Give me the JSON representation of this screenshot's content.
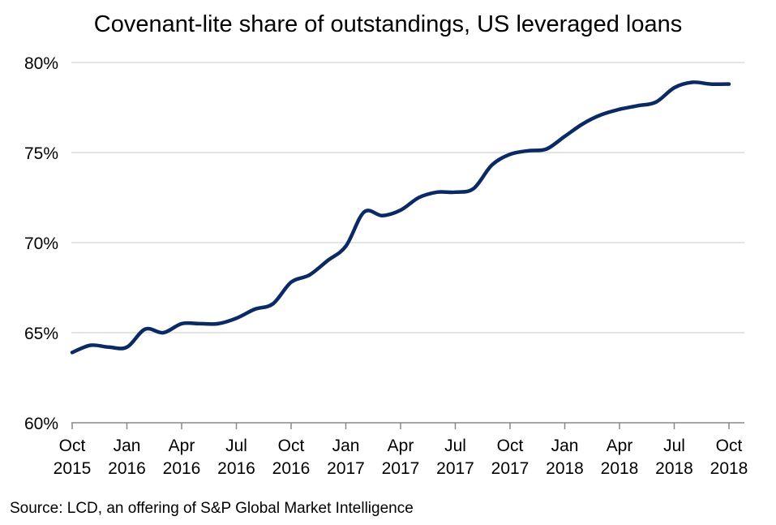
{
  "chart_data": {
    "type": "line",
    "title": "Covenant-lite share of outstandings, US leveraged loans",
    "xlabel": "",
    "ylabel": "",
    "ylim": [
      60,
      80
    ],
    "y_ticks": [
      "60%",
      "65%",
      "70%",
      "75%",
      "80%"
    ],
    "y_tick_values": [
      60,
      65,
      70,
      75,
      80
    ],
    "x_ticks": [
      {
        "month": "Oct",
        "year": "2015"
      },
      {
        "month": "Jan",
        "year": "2016"
      },
      {
        "month": "Apr",
        "year": "2016"
      },
      {
        "month": "Jul",
        "year": "2016"
      },
      {
        "month": "Oct",
        "year": "2016"
      },
      {
        "month": "Jan",
        "year": "2017"
      },
      {
        "month": "Apr",
        "year": "2017"
      },
      {
        "month": "Jul",
        "year": "2017"
      },
      {
        "month": "Oct",
        "year": "2017"
      },
      {
        "month": "Jan",
        "year": "2018"
      },
      {
        "month": "Apr",
        "year": "2018"
      },
      {
        "month": "Jul",
        "year": "2018"
      },
      {
        "month": "Oct",
        "year": "2018"
      }
    ],
    "grid": "horizontal",
    "series": [
      {
        "color": "#0b2a63",
        "x": [
          "2015-10",
          "2015-11",
          "2015-12",
          "2016-01",
          "2016-02",
          "2016-03",
          "2016-04",
          "2016-05",
          "2016-06",
          "2016-07",
          "2016-08",
          "2016-09",
          "2016-10",
          "2016-11",
          "2016-12",
          "2017-01",
          "2017-02",
          "2017-03",
          "2017-04",
          "2017-05",
          "2017-06",
          "2017-07",
          "2017-08",
          "2017-09",
          "2017-10",
          "2017-11",
          "2017-12",
          "2018-01",
          "2018-02",
          "2018-03",
          "2018-04",
          "2018-05",
          "2018-06",
          "2018-07",
          "2018-08",
          "2018-09",
          "2018-10"
        ],
        "values": [
          63.9,
          64.3,
          64.2,
          64.2,
          65.2,
          65.0,
          65.5,
          65.5,
          65.5,
          65.8,
          66.3,
          66.6,
          67.8,
          68.2,
          69.0,
          69.8,
          71.7,
          71.5,
          71.8,
          72.5,
          72.8,
          72.8,
          73.0,
          74.3,
          74.9,
          75.1,
          75.2,
          75.9,
          76.6,
          77.1,
          77.4,
          77.6,
          77.8,
          78.6,
          78.9,
          78.8,
          78.8
        ]
      }
    ]
  },
  "source": "Source: LCD, an offering of S&P Global Market Intelligence"
}
